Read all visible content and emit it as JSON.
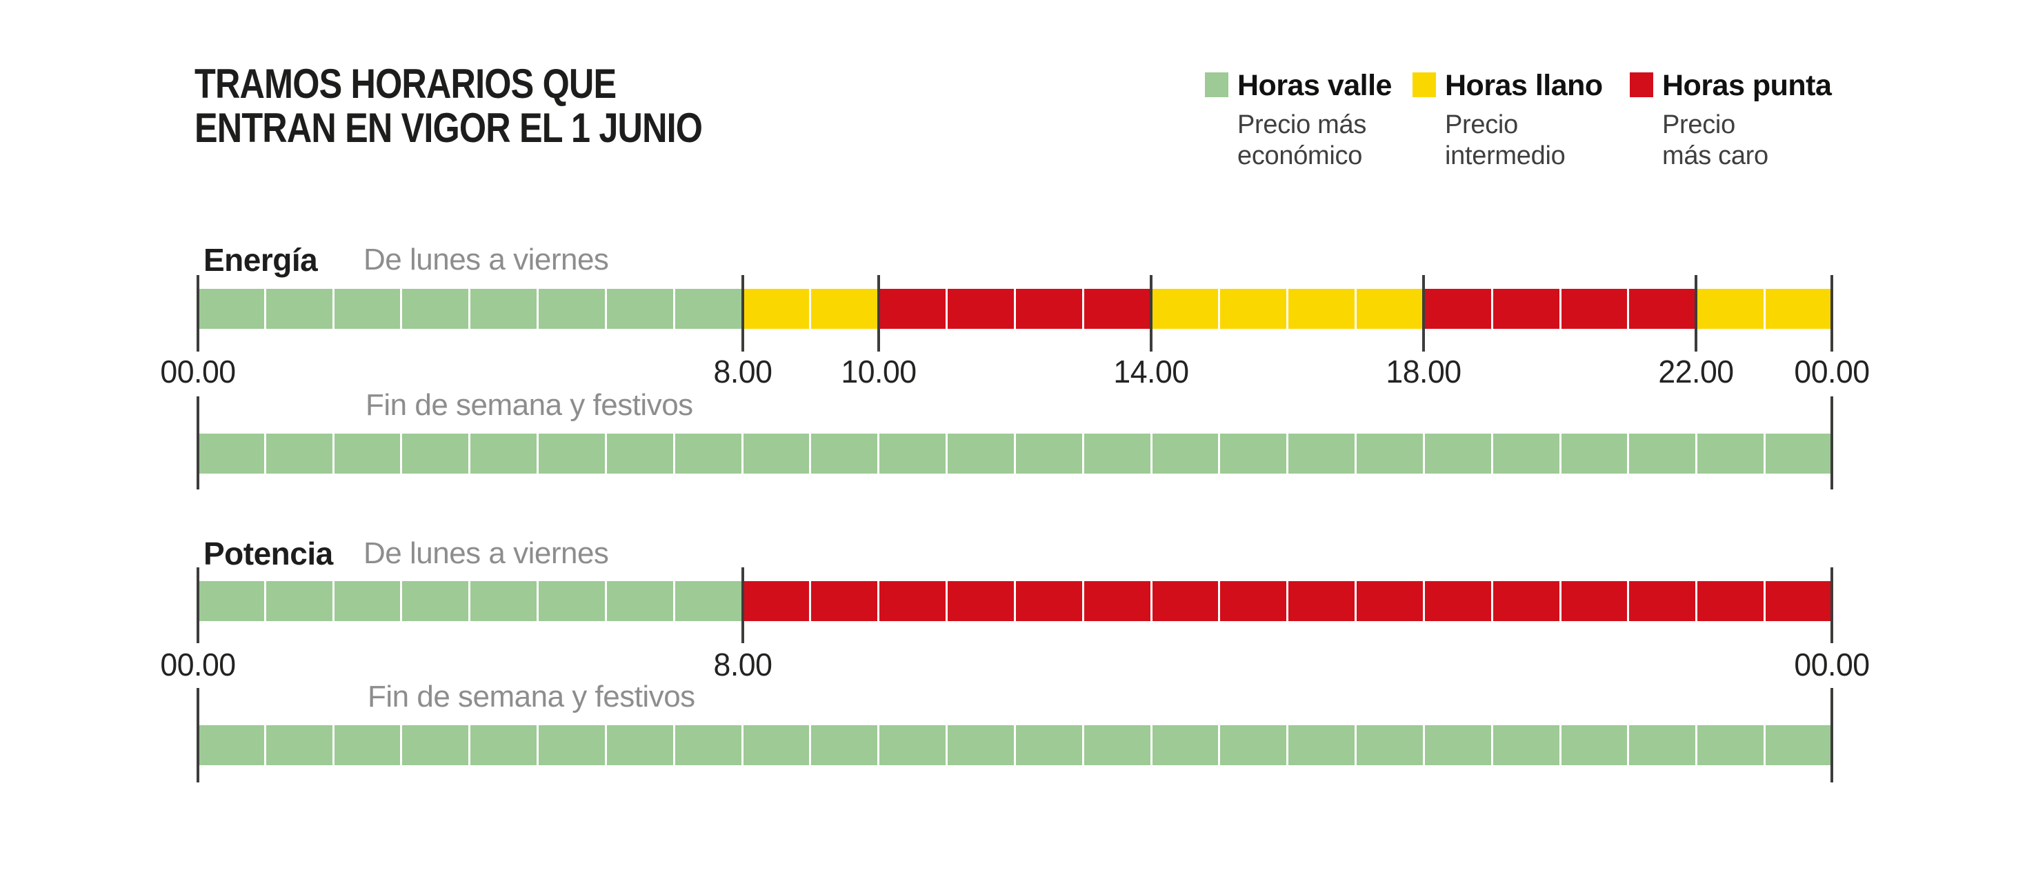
{
  "title": {
    "line1": "TRAMOS HORARIOS QUE",
    "line2": "ENTRAN EN VIGOR EL 1 JUNIO"
  },
  "legend": {
    "items": [
      {
        "label": "Horas valle",
        "desc": [
          "Precio más",
          "económico"
        ],
        "color": "#9dca95"
      },
      {
        "label": "Horas llano",
        "desc": [
          "Precio",
          "intermedio"
        ],
        "color": "#fbd700"
      },
      {
        "label": "Horas punta",
        "desc": [
          "Precio",
          "más caro"
        ],
        "color": "#d20e1b"
      }
    ]
  },
  "colors": {
    "valle": "#9dca95",
    "llano": "#fbd700",
    "punta": "#d20e1b",
    "tick": "#3d3d3b",
    "divider": "#ffffff",
    "title_text": "#1d1d1b",
    "gray_text": "#8d8d8d",
    "desc_text": "#3f3f3f",
    "axis_text": "#232321"
  },
  "chart_data": {
    "type": "bar",
    "subtype": "horizontal-time-bands",
    "hours_range": [
      0,
      24
    ],
    "hour_tick_format": "00.00",
    "categories_legend": [
      "Horas valle",
      "Horas llano",
      "Horas punta"
    ],
    "groups": [
      {
        "name": "Energía",
        "rows": [
          {
            "label": "De lunes a viernes",
            "segments": [
              {
                "from": 0,
                "to": 8,
                "category": "valle"
              },
              {
                "from": 8,
                "to": 10,
                "category": "llano"
              },
              {
                "from": 10,
                "to": 14,
                "category": "punta"
              },
              {
                "from": 14,
                "to": 18,
                "category": "llano"
              },
              {
                "from": 18,
                "to": 22,
                "category": "punta"
              },
              {
                "from": 22,
                "to": 24,
                "category": "llano"
              }
            ],
            "ticks": [
              {
                "hour": 0,
                "label": "00.00"
              },
              {
                "hour": 8,
                "label": "8.00"
              },
              {
                "hour": 10,
                "label": "10.00"
              },
              {
                "hour": 14,
                "label": "14.00"
              },
              {
                "hour": 18,
                "label": "18.00"
              },
              {
                "hour": 22,
                "label": "22.00"
              },
              {
                "hour": 24,
                "label": "00.00"
              }
            ]
          },
          {
            "label": "Fin de semana y festivos",
            "segments": [
              {
                "from": 0,
                "to": 24,
                "category": "valle"
              }
            ],
            "ticks": [
              {
                "hour": 0
              },
              {
                "hour": 24
              }
            ]
          }
        ]
      },
      {
        "name": "Potencia",
        "rows": [
          {
            "label": "De lunes a viernes",
            "segments": [
              {
                "from": 0,
                "to": 8,
                "category": "valle"
              },
              {
                "from": 8,
                "to": 24,
                "category": "punta"
              }
            ],
            "ticks": [
              {
                "hour": 0,
                "label": "00.00"
              },
              {
                "hour": 8,
                "label": "8.00"
              },
              {
                "hour": 24,
                "label": "00.00"
              }
            ]
          },
          {
            "label": "Fin de semana y festivos",
            "segments": [
              {
                "from": 0,
                "to": 24,
                "category": "valle"
              }
            ],
            "ticks": [
              {
                "hour": 0
              },
              {
                "hour": 24
              }
            ]
          }
        ]
      }
    ]
  }
}
